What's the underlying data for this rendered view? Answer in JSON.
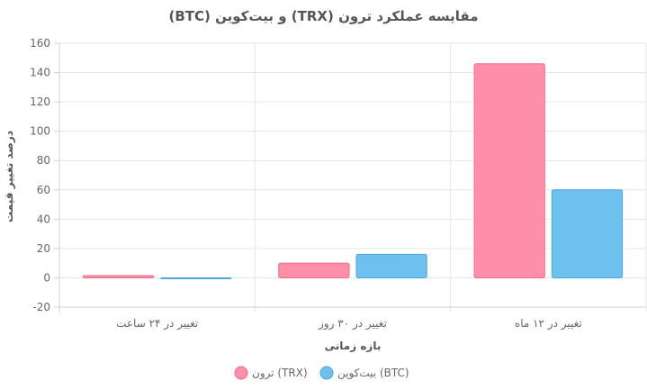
{
  "chart_data": {
    "type": "bar",
    "title": "(BTC) و بیت‌کوین (TRX) مقایسه عملکرد ترون",
    "xlabel": "بازه زمانی",
    "ylabel": "درصد تغییر قیمت",
    "categories": [
      "تغییر در ۲۴ ساعت",
      "تغییر در ۳۰ روز",
      "تغییر در ۱۲ ماه"
    ],
    "series": [
      {
        "name": "ترون (TRX)",
        "values": [
          1.5,
          10,
          146
        ],
        "color": "#ff8fa8",
        "border": "#f06b8a"
      },
      {
        "name": "بیت‌کوین (BTC)",
        "values": [
          -0.5,
          16,
          60
        ],
        "color": "#6ec0ef",
        "border": "#4aa8e0"
      }
    ],
    "ylim": [
      -20,
      160
    ],
    "yticks": [
      -20,
      0,
      20,
      40,
      60,
      80,
      100,
      120,
      140,
      160
    ],
    "grid": true,
    "legend": "bottom"
  }
}
